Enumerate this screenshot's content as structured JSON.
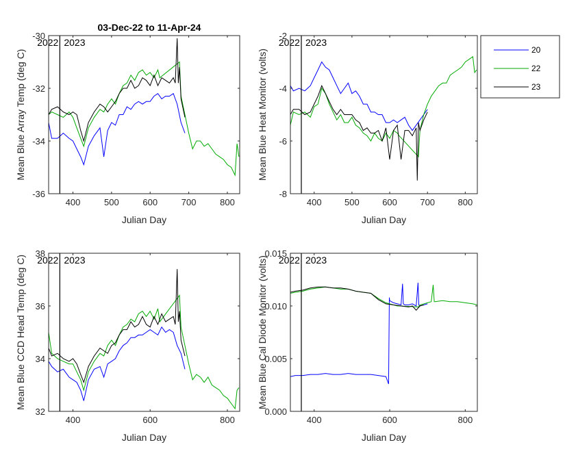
{
  "figure": {
    "title": "03-Dec-22 to 11-Apr-24",
    "legend_placement": "top-right, outside axes",
    "series_names": [
      "20",
      "22",
      "23"
    ],
    "series_colors": {
      "20": "#0000ff",
      "22": "#00aa00",
      "23": "#000000"
    }
  },
  "chart_data": [
    {
      "type": "line",
      "id": "array_temp",
      "xlabel": "Julian Day",
      "ylabel": "Mean Blue Array Temp (deg C)",
      "xlim": [
        337,
        832
      ],
      "ylim": [
        -36,
        -30
      ],
      "xticks": [
        400,
        500,
        600,
        700,
        800
      ],
      "yticks": [
        -36,
        -34,
        -32,
        -30
      ],
      "ytick_labels": [
        "-36",
        "-34",
        "-32",
        "-30"
      ],
      "year_marker_x": 366,
      "year_labels": [
        "2022",
        "2023"
      ],
      "series": [
        {
          "name": "20",
          "color": "#0000ff",
          "x": [
            337,
            345,
            360,
            375,
            390,
            400,
            410,
            420,
            428,
            440,
            455,
            470,
            480,
            490,
            500,
            510,
            520,
            530,
            540,
            550,
            560,
            570,
            580,
            590,
            600,
            610,
            620,
            630,
            640,
            650,
            660,
            670,
            680,
            690
          ],
          "y": [
            -33.3,
            -33.9,
            -33.9,
            -33.7,
            -33.9,
            -34.0,
            -34.3,
            -34.6,
            -34.9,
            -34.2,
            -33.8,
            -33.5,
            -34.6,
            -33.6,
            -33.3,
            -33.4,
            -33.0,
            -33.0,
            -32.7,
            -32.8,
            -32.6,
            -32.5,
            -32.6,
            -32.5,
            -32.5,
            -32.3,
            -32.2,
            -32.4,
            -32.3,
            -32.3,
            -32.2,
            -32.6,
            -33.3,
            -33.7
          ]
        },
        {
          "name": "22",
          "color": "#00aa00",
          "x": [
            337,
            345,
            360,
            375,
            390,
            400,
            410,
            420,
            428,
            440,
            455,
            470,
            480,
            490,
            500,
            510,
            520,
            530,
            540,
            550,
            560,
            570,
            580,
            590,
            600,
            610,
            620,
            625,
            676,
            680,
            690,
            700,
            710,
            720,
            730,
            740,
            750,
            760,
            770,
            780,
            790,
            800,
            810,
            820,
            825,
            830
          ],
          "y": [
            -33.0,
            -32.9,
            -33.0,
            -33.1,
            -32.9,
            -33.1,
            -33.5,
            -33.9,
            -34.2,
            -33.5,
            -33.1,
            -32.8,
            -32.9,
            -32.6,
            -32.4,
            -32.6,
            -32.2,
            -31.9,
            -31.8,
            -31.5,
            -31.7,
            -31.4,
            -31.3,
            -31.5,
            -31.4,
            -31.6,
            -31.3,
            -31.6,
            -31.0,
            -32.3,
            -33.0,
            -33.7,
            -34.3,
            -34.0,
            -34.0,
            -34.2,
            -34.1,
            -34.3,
            -34.5,
            -34.6,
            -34.7,
            -34.9,
            -35.0,
            -35.3,
            -34.1,
            -34.6
          ]
        },
        {
          "name": "23",
          "color": "#000000",
          "x": [
            337,
            345,
            360,
            375,
            390,
            400,
            410,
            420,
            428,
            440,
            455,
            470,
            480,
            490,
            500,
            510,
            520,
            530,
            540,
            550,
            560,
            570,
            580,
            590,
            600,
            610,
            620,
            630,
            640,
            650,
            660,
            665,
            670,
            673,
            676,
            680,
            690
          ],
          "y": [
            -33.0,
            -32.8,
            -32.7,
            -32.9,
            -33.0,
            -32.9,
            -33.0,
            -33.6,
            -34.0,
            -33.3,
            -32.9,
            -32.6,
            -32.7,
            -32.9,
            -32.7,
            -32.5,
            -32.2,
            -32.0,
            -32.0,
            -31.7,
            -32.0,
            -31.9,
            -31.6,
            -31.7,
            -31.9,
            -31.5,
            -31.9,
            -31.6,
            -31.7,
            -31.8,
            -31.6,
            -31.8,
            -30.1,
            -31.8,
            -31.2,
            -32.4,
            -33.1
          ]
        }
      ]
    },
    {
      "type": "line",
      "id": "heat_monitor",
      "xlabel": "Julian Day",
      "ylabel": "Mean Blue Heat Monitor (volts)",
      "xlim": [
        337,
        832
      ],
      "ylim": [
        -8,
        -2
      ],
      "xticks": [
        400,
        500,
        600,
        700,
        800
      ],
      "yticks": [
        -8,
        -6,
        -4,
        -2
      ],
      "ytick_labels": [
        "-8",
        "-6",
        "-4",
        "-2"
      ],
      "year_marker_x": 366,
      "year_labels": [
        "2022",
        "2023"
      ],
      "series": [
        {
          "name": "20",
          "color": "#0000ff",
          "x": [
            337,
            345,
            360,
            375,
            390,
            400,
            410,
            420,
            430,
            440,
            450,
            460,
            470,
            480,
            490,
            500,
            510,
            520,
            530,
            540,
            550,
            560,
            570,
            580,
            590,
            600,
            610,
            620,
            630,
            640,
            650,
            660,
            670,
            680,
            690,
            700
          ],
          "y": [
            -3.9,
            -4.1,
            -4.0,
            -4.1,
            -3.9,
            -3.6,
            -3.3,
            -3.0,
            -3.2,
            -3.3,
            -3.6,
            -3.9,
            -4.2,
            -4.0,
            -3.8,
            -4.2,
            -4.1,
            -4.3,
            -4.6,
            -4.6,
            -4.9,
            -4.9,
            -5.0,
            -5.0,
            -5.3,
            -5.3,
            -5.2,
            -5.3,
            -5.2,
            -5.1,
            -5.4,
            -5.6,
            -5.4,
            -5.2,
            -5.0,
            -4.8
          ]
        },
        {
          "name": "22",
          "color": "#00aa00",
          "x": [
            337,
            345,
            360,
            375,
            390,
            400,
            410,
            420,
            430,
            440,
            450,
            460,
            470,
            480,
            490,
            500,
            510,
            520,
            530,
            540,
            550,
            560,
            570,
            580,
            590,
            600,
            610,
            620,
            625,
            676,
            680,
            690,
            700,
            710,
            720,
            730,
            740,
            750,
            760,
            770,
            780,
            790,
            800,
            810,
            820,
            825,
            830
          ],
          "y": [
            -5.4,
            -4.9,
            -5.0,
            -4.9,
            -5.1,
            -4.7,
            -4.6,
            -4.0,
            -4.2,
            -4.6,
            -4.9,
            -5.2,
            -5.0,
            -5.3,
            -5.3,
            -5.1,
            -5.4,
            -5.5,
            -5.7,
            -5.8,
            -6.0,
            -5.7,
            -5.9,
            -6.0,
            -5.7,
            -5.9,
            -5.6,
            -5.7,
            -5.8,
            -6.6,
            -5.6,
            -5.0,
            -4.6,
            -4.3,
            -4.1,
            -3.9,
            -3.8,
            -3.8,
            -3.5,
            -3.4,
            -3.3,
            -3.2,
            -3.0,
            -2.9,
            -2.8,
            -3.4,
            -3.3
          ]
        },
        {
          "name": "23",
          "color": "#000000",
          "x": [
            337,
            345,
            360,
            375,
            390,
            400,
            410,
            420,
            430,
            440,
            450,
            460,
            470,
            480,
            490,
            500,
            510,
            520,
            530,
            540,
            550,
            560,
            570,
            580,
            590,
            600,
            610,
            620,
            630,
            640,
            650,
            660,
            670,
            673,
            676,
            680,
            690,
            700
          ],
          "y": [
            -5.0,
            -4.8,
            -4.8,
            -5.0,
            -4.9,
            -4.6,
            -4.3,
            -3.9,
            -4.2,
            -4.5,
            -4.8,
            -5.0,
            -4.8,
            -5.0,
            -5.0,
            -5.0,
            -5.2,
            -5.3,
            -5.6,
            -5.5,
            -5.7,
            -5.7,
            -5.6,
            -6.0,
            -5.5,
            -6.7,
            -5.6,
            -5.4,
            -6.7,
            -5.6,
            -5.6,
            -5.8,
            -5.5,
            -7.5,
            -5.3,
            -5.6,
            -5.2,
            -4.9
          ]
        }
      ]
    },
    {
      "type": "line",
      "id": "ccd_head_temp",
      "xlabel": "Julian Day",
      "ylabel": "Mean Blue CCD Head Temp (deg C)",
      "xlim": [
        337,
        832
      ],
      "ylim": [
        32,
        38
      ],
      "xticks": [
        400,
        600,
        800
      ],
      "yticks": [
        32,
        34,
        36,
        38
      ],
      "ytick_labels": [
        "32",
        "34",
        "36",
        "38"
      ],
      "year_marker_x": 366,
      "year_labels": [
        "2022",
        "2023"
      ],
      "series": [
        {
          "name": "20",
          "color": "#0000ff",
          "x": [
            337,
            345,
            360,
            375,
            390,
            400,
            410,
            420,
            428,
            440,
            455,
            470,
            480,
            490,
            500,
            510,
            520,
            530,
            540,
            550,
            560,
            570,
            580,
            590,
            600,
            610,
            620,
            630,
            640,
            650,
            660,
            670,
            680,
            690
          ],
          "y": [
            33.9,
            33.7,
            33.5,
            33.6,
            33.3,
            33.2,
            33.1,
            32.8,
            32.4,
            33.2,
            33.6,
            33.7,
            33.3,
            33.8,
            33.9,
            34.0,
            34.3,
            34.5,
            34.6,
            34.8,
            34.8,
            34.9,
            34.9,
            35.0,
            35.1,
            35.0,
            34.9,
            35.2,
            35.0,
            35.1,
            35.0,
            34.5,
            34.2,
            33.6
          ]
        },
        {
          "name": "22",
          "color": "#00aa00",
          "x": [
            337,
            345,
            360,
            375,
            390,
            400,
            410,
            420,
            428,
            440,
            455,
            470,
            480,
            490,
            500,
            510,
            520,
            530,
            540,
            550,
            560,
            570,
            580,
            590,
            600,
            610,
            620,
            625,
            676,
            680,
            690,
            700,
            710,
            720,
            730,
            740,
            750,
            760,
            770,
            780,
            790,
            800,
            810,
            820,
            825,
            830
          ],
          "y": [
            35.0,
            34.2,
            34.0,
            33.9,
            33.8,
            33.8,
            33.5,
            33.2,
            32.8,
            33.5,
            33.9,
            34.2,
            34.1,
            34.5,
            34.7,
            34.5,
            34.9,
            35.2,
            35.3,
            35.5,
            35.4,
            35.7,
            35.8,
            35.6,
            35.8,
            35.5,
            35.9,
            35.4,
            36.4,
            35.2,
            34.5,
            33.8,
            33.2,
            33.4,
            33.3,
            33.1,
            33.3,
            33.0,
            32.9,
            32.8,
            32.6,
            32.5,
            32.3,
            32.1,
            32.8,
            32.9
          ]
        },
        {
          "name": "23",
          "color": "#000000",
          "x": [
            337,
            345,
            360,
            375,
            390,
            400,
            410,
            420,
            428,
            440,
            455,
            470,
            480,
            490,
            500,
            510,
            520,
            530,
            540,
            550,
            560,
            570,
            580,
            590,
            600,
            610,
            620,
            630,
            640,
            650,
            660,
            665,
            670,
            673,
            676,
            680,
            690
          ],
          "y": [
            34.4,
            34.1,
            34.2,
            34.0,
            33.9,
            34.0,
            33.8,
            33.4,
            33.1,
            33.7,
            34.1,
            34.4,
            34.3,
            34.2,
            34.5,
            34.6,
            34.9,
            35.1,
            35.1,
            35.4,
            35.2,
            35.3,
            35.6,
            35.3,
            35.2,
            35.6,
            35.3,
            35.7,
            35.4,
            35.5,
            35.6,
            35.3,
            37.4,
            35.4,
            35.8,
            34.7,
            34.1
          ]
        }
      ]
    },
    {
      "type": "line",
      "id": "cal_diode",
      "xlabel": "Julian Day",
      "ylabel": "Mean Blue Cal Diode Monitor (volts)",
      "xlim": [
        337,
        832
      ],
      "ylim": [
        0,
        0.015
      ],
      "xticks": [
        400,
        600,
        800
      ],
      "yticks": [
        0,
        0.005,
        0.01,
        0.015
      ],
      "ytick_labels": [
        "0.000",
        "0.005",
        "0.010",
        "0.015"
      ],
      "year_marker_x": 366,
      "year_labels": [
        "2022",
        "2023"
      ],
      "series": [
        {
          "name": "20",
          "color": "#0000ff",
          "x": [
            337,
            350,
            370,
            390,
            410,
            430,
            450,
            470,
            490,
            510,
            530,
            550,
            570,
            590,
            597,
            599,
            600,
            610,
            620,
            630,
            634,
            636,
            640,
            650,
            660,
            670,
            675,
            677,
            680,
            690,
            700
          ],
          "y": [
            0.0033,
            0.0034,
            0.0034,
            0.0035,
            0.0035,
            0.0036,
            0.0035,
            0.0035,
            0.0036,
            0.0035,
            0.0035,
            0.0035,
            0.0034,
            0.0033,
            0.0026,
            0.0108,
            0.0105,
            0.0103,
            0.0102,
            0.0101,
            0.0121,
            0.0102,
            0.0101,
            0.0101,
            0.0102,
            0.01,
            0.0122,
            0.0101,
            0.01,
            0.0101,
            0.0102
          ]
        },
        {
          "name": "22",
          "color": "#00aa00",
          "x": [
            337,
            350,
            370,
            390,
            410,
            430,
            450,
            470,
            490,
            510,
            530,
            550,
            570,
            590,
            610,
            620,
            625,
            676,
            680,
            700,
            710,
            715,
            718,
            720,
            740,
            760,
            780,
            800,
            820,
            832
          ],
          "y": [
            0.0112,
            0.0113,
            0.0114,
            0.0116,
            0.0117,
            0.0118,
            0.0117,
            0.0116,
            0.0116,
            0.0114,
            0.0113,
            0.0112,
            0.0107,
            0.0103,
            0.0101,
            0.01,
            0.01,
            0.0099,
            0.0101,
            0.0103,
            0.0104,
            0.012,
            0.0104,
            0.0104,
            0.0105,
            0.0104,
            0.0104,
            0.0103,
            0.0102,
            0.0101
          ]
        },
        {
          "name": "23",
          "color": "#000000",
          "x": [
            337,
            350,
            370,
            390,
            410,
            430,
            450,
            470,
            490,
            510,
            530,
            550,
            570,
            590,
            610,
            630,
            650,
            660,
            670,
            680,
            690
          ],
          "y": [
            0.0113,
            0.0114,
            0.0115,
            0.0117,
            0.0118,
            0.0118,
            0.0117,
            0.0117,
            0.0116,
            0.0114,
            0.0113,
            0.0112,
            0.0106,
            0.0102,
            0.0101,
            0.01,
            0.0099,
            0.01,
            0.0096,
            0.01,
            0.0101
          ]
        }
      ]
    }
  ]
}
